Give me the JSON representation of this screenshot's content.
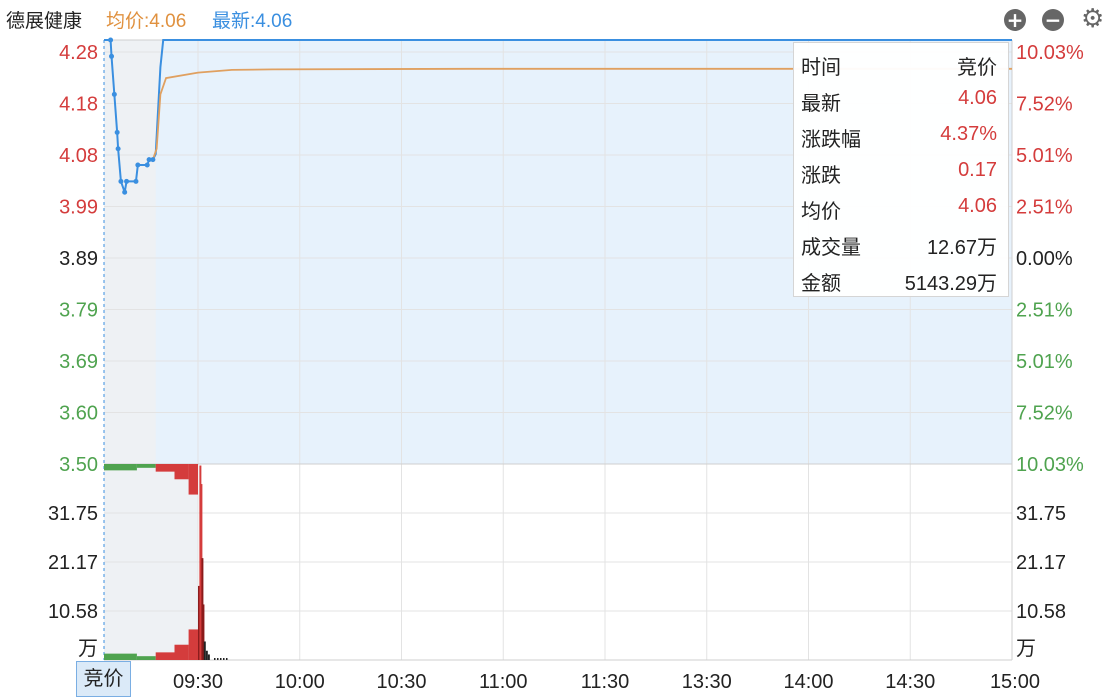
{
  "header": {
    "stock_name": "德展健康",
    "avg_price_label": "均价:4.06",
    "last_price_label": "最新:4.06"
  },
  "controls": {
    "zoom_in_icon": "plus-circle-icon",
    "zoom_out_icon": "minus-circle-icon",
    "settings_icon": "gear-icon"
  },
  "colors": {
    "up": "#d43c3c",
    "neutral": "#222222",
    "down": "#4fa34f",
    "price_line": "#3a8fe0",
    "avg_line": "#e0a060",
    "area_fill": "#e7f2fc",
    "call_auction_bg": "#eef1f4"
  },
  "tooltip": {
    "header_key": "时间",
    "header_value": "竞价",
    "rows": [
      {
        "key": "最新",
        "value": "4.06",
        "color": "#d43c3c"
      },
      {
        "key": "涨跌幅",
        "value": "4.37%",
        "color": "#d43c3c"
      },
      {
        "key": "涨跌",
        "value": "0.17",
        "color": "#d43c3c"
      },
      {
        "key": "均价",
        "value": "4.06",
        "color": "#d43c3c"
      },
      {
        "key": "成交量",
        "value": "12.67万",
        "color": "#222222"
      },
      {
        "key": "金额",
        "value": "5143.29万",
        "color": "#222222"
      }
    ]
  },
  "bid_tab_label": "竞价",
  "chart_data": {
    "type": "line",
    "price_axis": {
      "ticks": [
        "4.28",
        "4.18",
        "4.08",
        "3.99",
        "3.89",
        "3.79",
        "3.69",
        "3.60",
        "3.50"
      ],
      "tick_colors": [
        "#d43c3c",
        "#d43c3c",
        "#d43c3c",
        "#d43c3c",
        "#222222",
        "#4fa34f",
        "#4fa34f",
        "#4fa34f",
        "#4fa34f"
      ],
      "range": [
        3.5,
        4.28
      ],
      "prev_close": 3.89
    },
    "pct_axis": {
      "ticks": [
        "10.03%",
        "7.52%",
        "5.01%",
        "2.51%",
        "0.00%",
        "2.51%",
        "5.01%",
        "7.52%",
        "10.03%"
      ]
    },
    "volume_axis": {
      "ticks": [
        "31.75",
        "21.17",
        "10.58"
      ],
      "unit": "万",
      "range": [
        0,
        42.33
      ]
    },
    "time_axis": {
      "ticks": [
        "09:30",
        "10:00",
        "10:30",
        "11:00",
        "11:30",
        "13:30",
        "14:00",
        "14:30",
        "15:00"
      ]
    },
    "series": [
      {
        "name": "最新",
        "color": "#3a8fe0",
        "points": [
          [
            0,
            4.28
          ],
          [
            0.07,
            4.28
          ],
          [
            0.08,
            4.25
          ],
          [
            0.11,
            4.18
          ],
          [
            0.14,
            4.11
          ],
          [
            0.15,
            4.08
          ],
          [
            0.18,
            4.02
          ],
          [
            0.22,
            4.0
          ],
          [
            0.24,
            4.02
          ],
          [
            0.34,
            4.02
          ],
          [
            0.36,
            4.05
          ],
          [
            0.46,
            4.05
          ],
          [
            0.48,
            4.06
          ],
          [
            0.52,
            4.06
          ],
          [
            0.55,
            4.07
          ],
          [
            0.6,
            4.23
          ],
          [
            0.63,
            4.28
          ],
          [
            1.0,
            4.28
          ],
          [
            26,
            4.28
          ]
        ]
      },
      {
        "name": "均价",
        "color": "#e0a060",
        "points": [
          [
            0.52,
            4.06
          ],
          [
            0.56,
            4.08
          ],
          [
            0.6,
            4.18
          ],
          [
            0.66,
            4.21
          ],
          [
            1.0,
            4.22
          ],
          [
            2,
            4.225
          ],
          [
            3.2,
            4.226
          ],
          [
            9,
            4.227
          ],
          [
            17,
            4.227
          ],
          [
            26,
            4.227
          ]
        ]
      }
    ],
    "volume_bars_call_auction": [
      {
        "from": 0,
        "to": 0.35,
        "value": 2.5,
        "color": "#4fa34f"
      },
      {
        "from": 0.35,
        "to": 0.55,
        "value": 1.5,
        "color": "#4fa34f"
      },
      {
        "from": 0.55,
        "to": 0.75,
        "value": 3,
        "color": "#d43c3c"
      },
      {
        "from": 0.75,
        "to": 0.9,
        "value": 6,
        "color": "#d43c3c"
      },
      {
        "from": 0.9,
        "to": 1.0,
        "value": 12,
        "color": "#d43c3c"
      }
    ],
    "volume_bars_trading": [
      {
        "t": 0.03,
        "value": 16,
        "color": "#8b1a1a"
      },
      {
        "t": 0.07,
        "value": 42,
        "color": "#d43c3c"
      },
      {
        "t": 0.1,
        "value": 38,
        "color": "#d43c3c"
      },
      {
        "t": 0.13,
        "value": 22,
        "color": "#8b1a1a"
      },
      {
        "t": 0.16,
        "value": 12,
        "color": "#8b1a1a"
      },
      {
        "t": 0.2,
        "value": 4,
        "color": "#222222"
      },
      {
        "t": 0.26,
        "value": 2,
        "color": "#222222"
      },
      {
        "t": 0.32,
        "value": 1.2,
        "color": "#222222"
      }
    ]
  }
}
